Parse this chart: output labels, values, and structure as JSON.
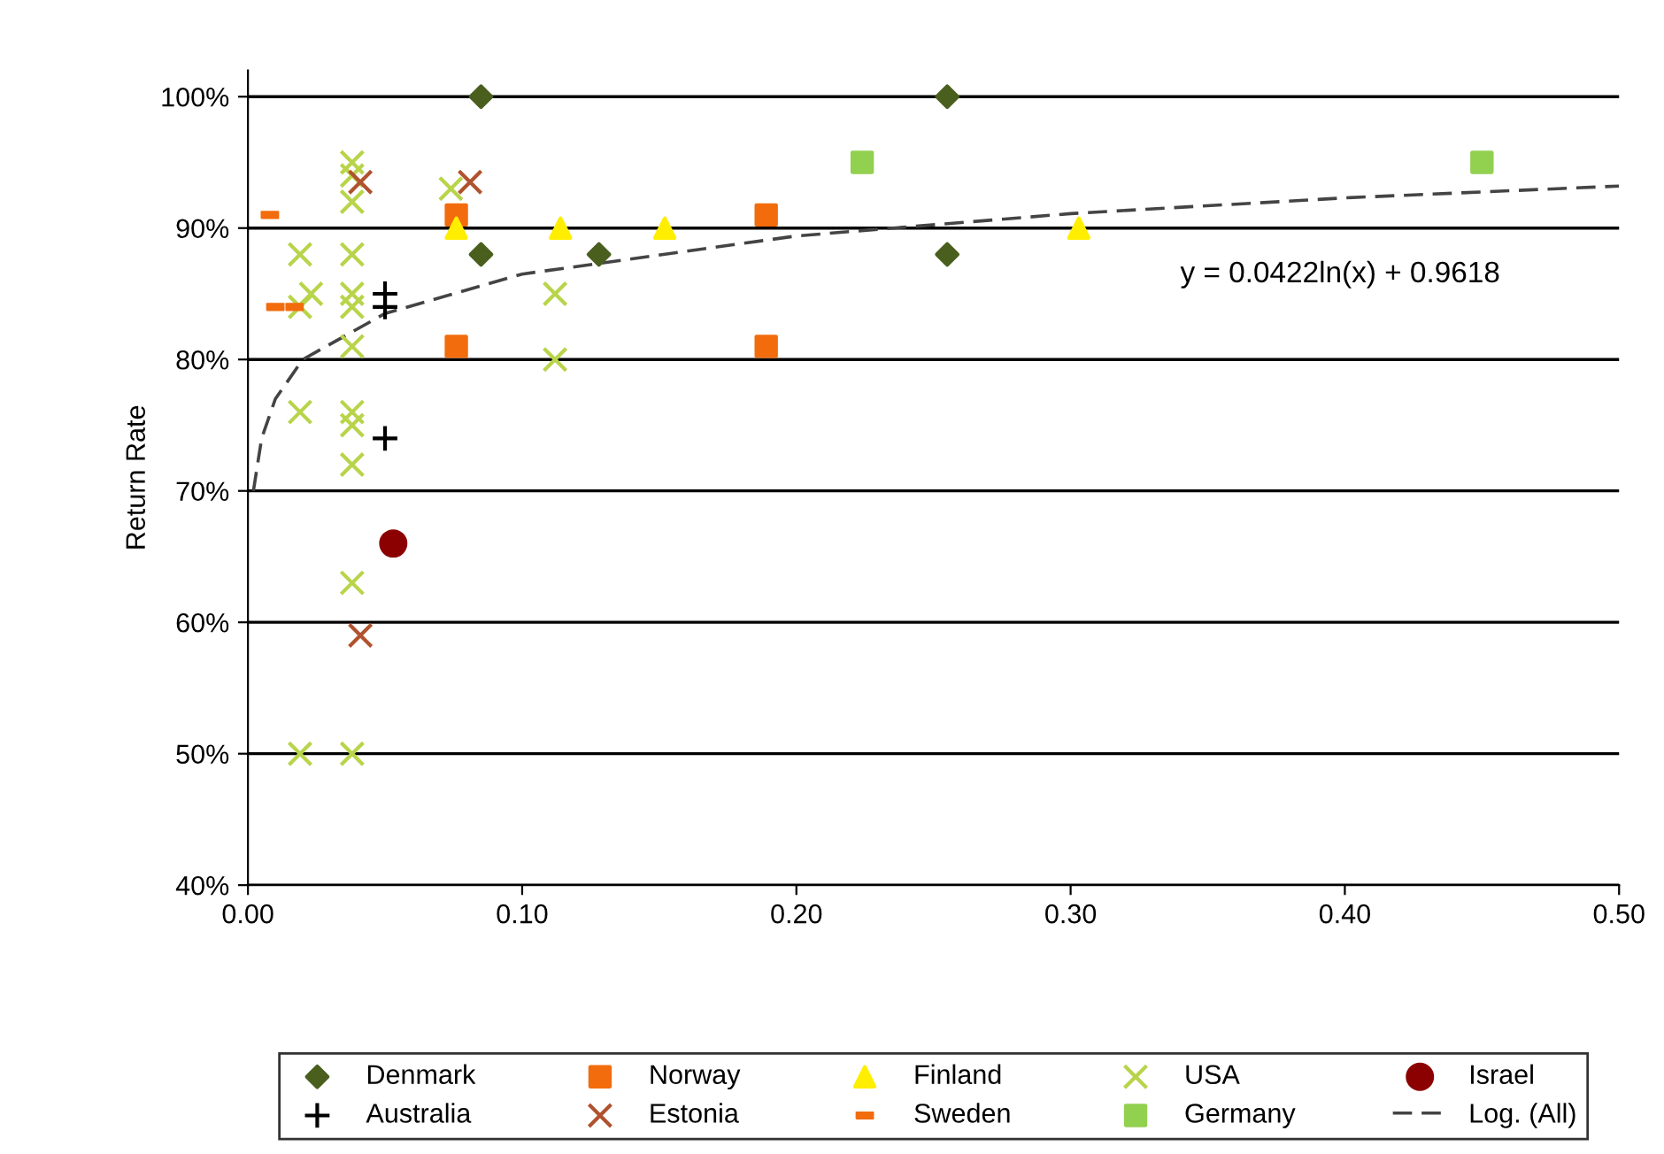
{
  "chart_data": {
    "type": "scatter",
    "ylabel": "Return Rate",
    "xlim": [
      0,
      0.5
    ],
    "ylim": [
      40,
      102
    ],
    "xticks": [
      {
        "value": 0,
        "label": "0.00"
      },
      {
        "value": 0.1,
        "label": "0.10"
      },
      {
        "value": 0.2,
        "label": "0.20"
      },
      {
        "value": 0.3,
        "label": "0.30"
      },
      {
        "value": 0.4,
        "label": "0.40"
      },
      {
        "value": 0.5,
        "label": "0.50"
      }
    ],
    "yticks": [
      {
        "value": 40,
        "label": "40%"
      },
      {
        "value": 50,
        "label": "50%"
      },
      {
        "value": 60,
        "label": "60%"
      },
      {
        "value": 70,
        "label": "70%"
      },
      {
        "value": 80,
        "label": "80%"
      },
      {
        "value": 90,
        "label": "90%"
      },
      {
        "value": 100,
        "label": "100%"
      }
    ],
    "grid": "y",
    "legend": "bottom",
    "annotations": [
      "y = 0.0422ln(x) + 0.9618"
    ],
    "series": [
      {
        "name": "Denmark",
        "color": "#4a5f1e",
        "marker": "diamond",
        "x": [
          0.085,
          0.255,
          0.085,
          0.128,
          0.255
        ],
        "values": [
          100,
          100,
          88,
          88,
          88
        ]
      },
      {
        "name": "Norway",
        "color": "#f26c0d",
        "marker": "square",
        "x": [
          0.076,
          0.076,
          0.189,
          0.189
        ],
        "values": [
          91,
          81,
          91,
          81
        ]
      },
      {
        "name": "Finland",
        "color": "#ffee00",
        "marker": "triangle",
        "x": [
          0.076,
          0.114,
          0.152,
          0.303
        ],
        "values": [
          90,
          90,
          90,
          90
        ]
      },
      {
        "name": "USA",
        "color": "#b8d44a",
        "marker": "cross",
        "x": [
          0.038,
          0.038,
          0.038,
          0.074,
          0.019,
          0.038,
          0.023,
          0.038,
          0.038,
          0.019,
          0.038,
          0.112,
          0.112,
          0.019,
          0.038,
          0.038,
          0.038,
          0.038,
          0.019,
          0.038
        ],
        "values": [
          95,
          94,
          92,
          93,
          88,
          88,
          85,
          85,
          84,
          84,
          81,
          85,
          80,
          76,
          76,
          75,
          72,
          63,
          50,
          50
        ]
      },
      {
        "name": "Israel",
        "color": "#8b0000",
        "marker": "circle",
        "x": [
          0.053
        ],
        "values": [
          66
        ]
      },
      {
        "name": "Australia",
        "color": "#000000",
        "marker": "plus",
        "x": [
          0.05,
          0.05,
          0.05
        ],
        "values": [
          85,
          84,
          74
        ]
      },
      {
        "name": "Estonia",
        "color": "#b0522e",
        "marker": "cross",
        "x": [
          0.041,
          0.081,
          0.041
        ],
        "values": [
          93.5,
          93.5,
          59
        ]
      },
      {
        "name": "Sweden",
        "color": "#f26c0d",
        "x": [
          0.008,
          0.01,
          0.017
        ],
        "values": [
          91,
          84,
          84
        ]
      },
      {
        "name": "Germany",
        "color": "#92d050",
        "marker": "square",
        "x": [
          0.224,
          0.45
        ],
        "values": [
          95,
          95
        ]
      },
      {
        "name": "Log. (All)",
        "type": "line",
        "color": "#444444",
        "marker": "none",
        "line_style": "dashed",
        "x": [
          0.002,
          0.005,
          0.01,
          0.02,
          0.05,
          0.1,
          0.2,
          0.3,
          0.4,
          0.5
        ],
        "values": [
          70,
          74,
          77,
          80,
          83.5,
          86.5,
          89.4,
          91.1,
          92.3,
          93.2
        ]
      }
    ]
  }
}
